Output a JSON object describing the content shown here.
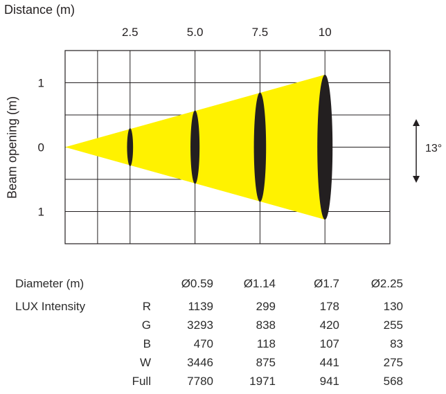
{
  "chart_data": {
    "type": "beam-diagram",
    "xlabel": "Distance (m)",
    "ylabel": "Beam opening (m)",
    "xticks": [
      "2.5",
      "5.0",
      "7.5",
      "10"
    ],
    "yticks": [
      "1",
      "0",
      "1"
    ],
    "beam_angle_label": "13°",
    "beam_angle_deg": 13,
    "xlim": [
      0,
      12.5
    ],
    "ylim": [
      -1.5,
      1.5
    ],
    "distances": [
      2.5,
      5.0,
      7.5,
      10
    ],
    "diameters": [
      0.59,
      1.14,
      1.7,
      2.25
    ],
    "colors": {
      "beam": "#fff200",
      "ellipse": "#231f20",
      "grid": "#231f20"
    }
  },
  "table": {
    "diameter_label": "Diameter (m)",
    "diameter_values": [
      "Ø0.59",
      "Ø1.14",
      "Ø1.7",
      "Ø2.25"
    ],
    "lux_label": "LUX Intensity",
    "rows": [
      {
        "channel": "R",
        "values": [
          "1139",
          "299",
          "178",
          "130"
        ]
      },
      {
        "channel": "G",
        "values": [
          "3293",
          "838",
          "420",
          "255"
        ]
      },
      {
        "channel": "B",
        "values": [
          "470",
          "118",
          "107",
          "83"
        ]
      },
      {
        "channel": "W",
        "values": [
          "3446",
          "875",
          "441",
          "275"
        ]
      },
      {
        "channel": "Full",
        "values": [
          "7780",
          "1971",
          "941",
          "568"
        ]
      }
    ]
  }
}
